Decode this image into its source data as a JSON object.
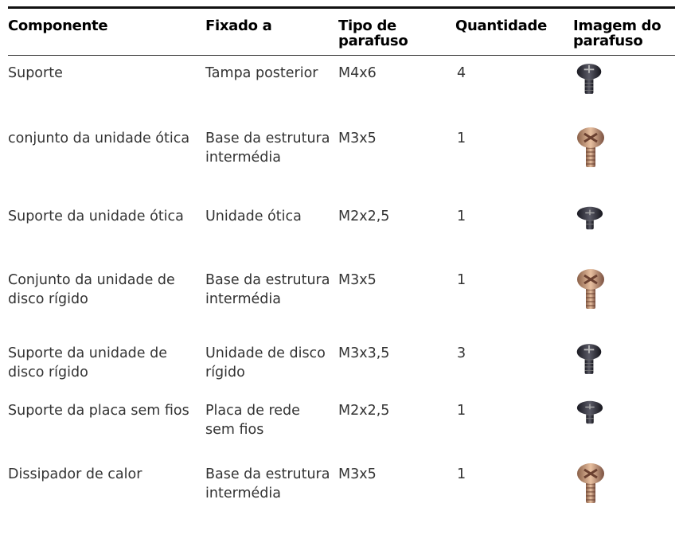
{
  "table": {
    "header": [
      "Componente",
      "Fixado a",
      "Tipo de parafuso",
      "Quantidade",
      "Imagem do parafuso"
    ],
    "rows": [
      [
        "Suporte",
        "Tampa posterior",
        "M4x6",
        4
      ],
      [
        "conjunto da unidade ótica",
        "Base da estrutura intermédia",
        "M3x5",
        1
      ],
      [
        "Suporte da unidade ótica",
        "Unidade ótica",
        "M2x2,5",
        1
      ],
      [
        "Conjunto da unidade de disco rígido",
        "Base da estrutura intermédia",
        "M3x5",
        1
      ],
      [
        "Suporte da unidade de disco rígido",
        "Unidade de disco rígido",
        "M3x3,5",
        3
      ],
      [
        "Suporte da placa sem fios",
        "Placa de rede sem fios",
        "M2x2,5",
        1
      ],
      [
        "Dissipador de calor",
        "Base da estrutura intermédia",
        "M3x5",
        1
      ]
    ]
  }
}
